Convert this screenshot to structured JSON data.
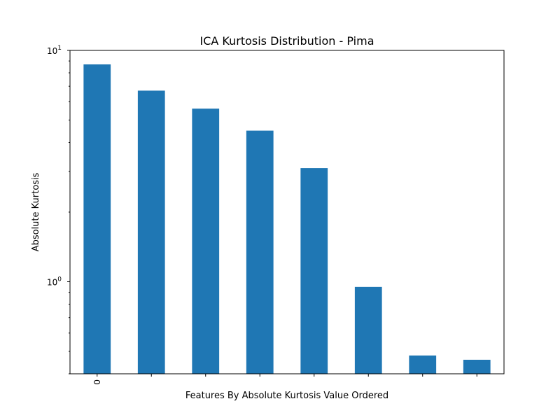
{
  "chart_data": {
    "type": "bar",
    "title": "ICA Kurtosis Distribution - Pima",
    "xlabel": "Features By Absolute Kurtosis Value Ordered",
    "ylabel": "Absolute Kurtosis",
    "yscale": "log",
    "ylim": [
      0.4,
      10
    ],
    "x_tick_labels": [
      "0",
      "",
      "",
      "",
      "",
      "",
      "",
      ""
    ],
    "y_ticks": [
      {
        "value": 1,
        "base": "10",
        "exp": "0"
      },
      {
        "value": 10,
        "base": "10",
        "exp": "1"
      }
    ],
    "series": [
      {
        "values": [
          8.7,
          6.7,
          5.6,
          4.5,
          3.1,
          0.95,
          0.48,
          0.46
        ],
        "color": "#1f77b4"
      }
    ],
    "grid": false,
    "legend": "none"
  }
}
